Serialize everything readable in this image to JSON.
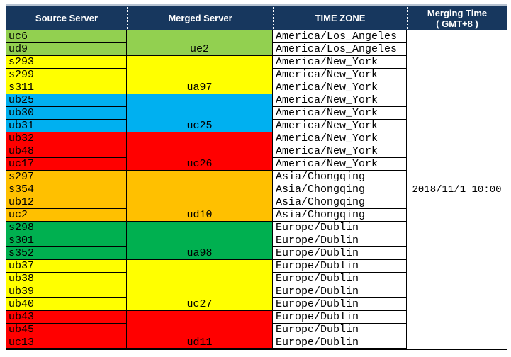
{
  "header": {
    "source_server": "Source Server",
    "merged_server": "Merged Server",
    "time_zone": "TIME ZONE",
    "merging_time_line1": "Merging Time",
    "merging_time_line2": "( GMT+8 )"
  },
  "merging_time_value": "2018/11/1 10:00",
  "colors": {
    "header_bg": "#17375E",
    "header_text": "#FFFFFF",
    "grid_border": "#000000",
    "light_green": "#92D050",
    "yellow": "#FFFF00",
    "blue": "#00B0F0",
    "red": "#FF0000",
    "orange": "#FFC000",
    "green": "#00B050"
  },
  "groups": [
    {
      "merged_server": "ue2",
      "color": "#92D050",
      "timezone": "America/Los_Angeles",
      "sources": [
        "uc6",
        "ud9"
      ]
    },
    {
      "merged_server": "ua97",
      "color": "#FFFF00",
      "timezone": "America/New_York",
      "sources": [
        "s293",
        "s299",
        "s311"
      ]
    },
    {
      "merged_server": "uc25",
      "color": "#00B0F0",
      "timezone": "America/New_York",
      "sources": [
        "ub25",
        "ub30",
        "ub31"
      ]
    },
    {
      "merged_server": "uc26",
      "color": "#FF0000",
      "timezone": "America/New_York",
      "sources": [
        "ub32",
        "ub48",
        "uc17"
      ]
    },
    {
      "merged_server": "ud10",
      "color": "#FFC000",
      "timezone": "Asia/Chongqing",
      "sources": [
        "s297",
        "s354",
        "ub12",
        "uc2"
      ]
    },
    {
      "merged_server": "ua98",
      "color": "#00B050",
      "timezone": "Europe/Dublin",
      "sources": [
        "s298",
        "s301",
        "s352"
      ]
    },
    {
      "merged_server": "uc27",
      "color": "#FFFF00",
      "timezone": "Europe/Dublin",
      "sources": [
        "ub37",
        "ub38",
        "ub39",
        "ub40"
      ]
    },
    {
      "merged_server": "ud11",
      "color": "#FF0000",
      "timezone": "Europe/Dublin",
      "sources": [
        "ub43",
        "ub45",
        "uc13"
      ]
    }
  ]
}
